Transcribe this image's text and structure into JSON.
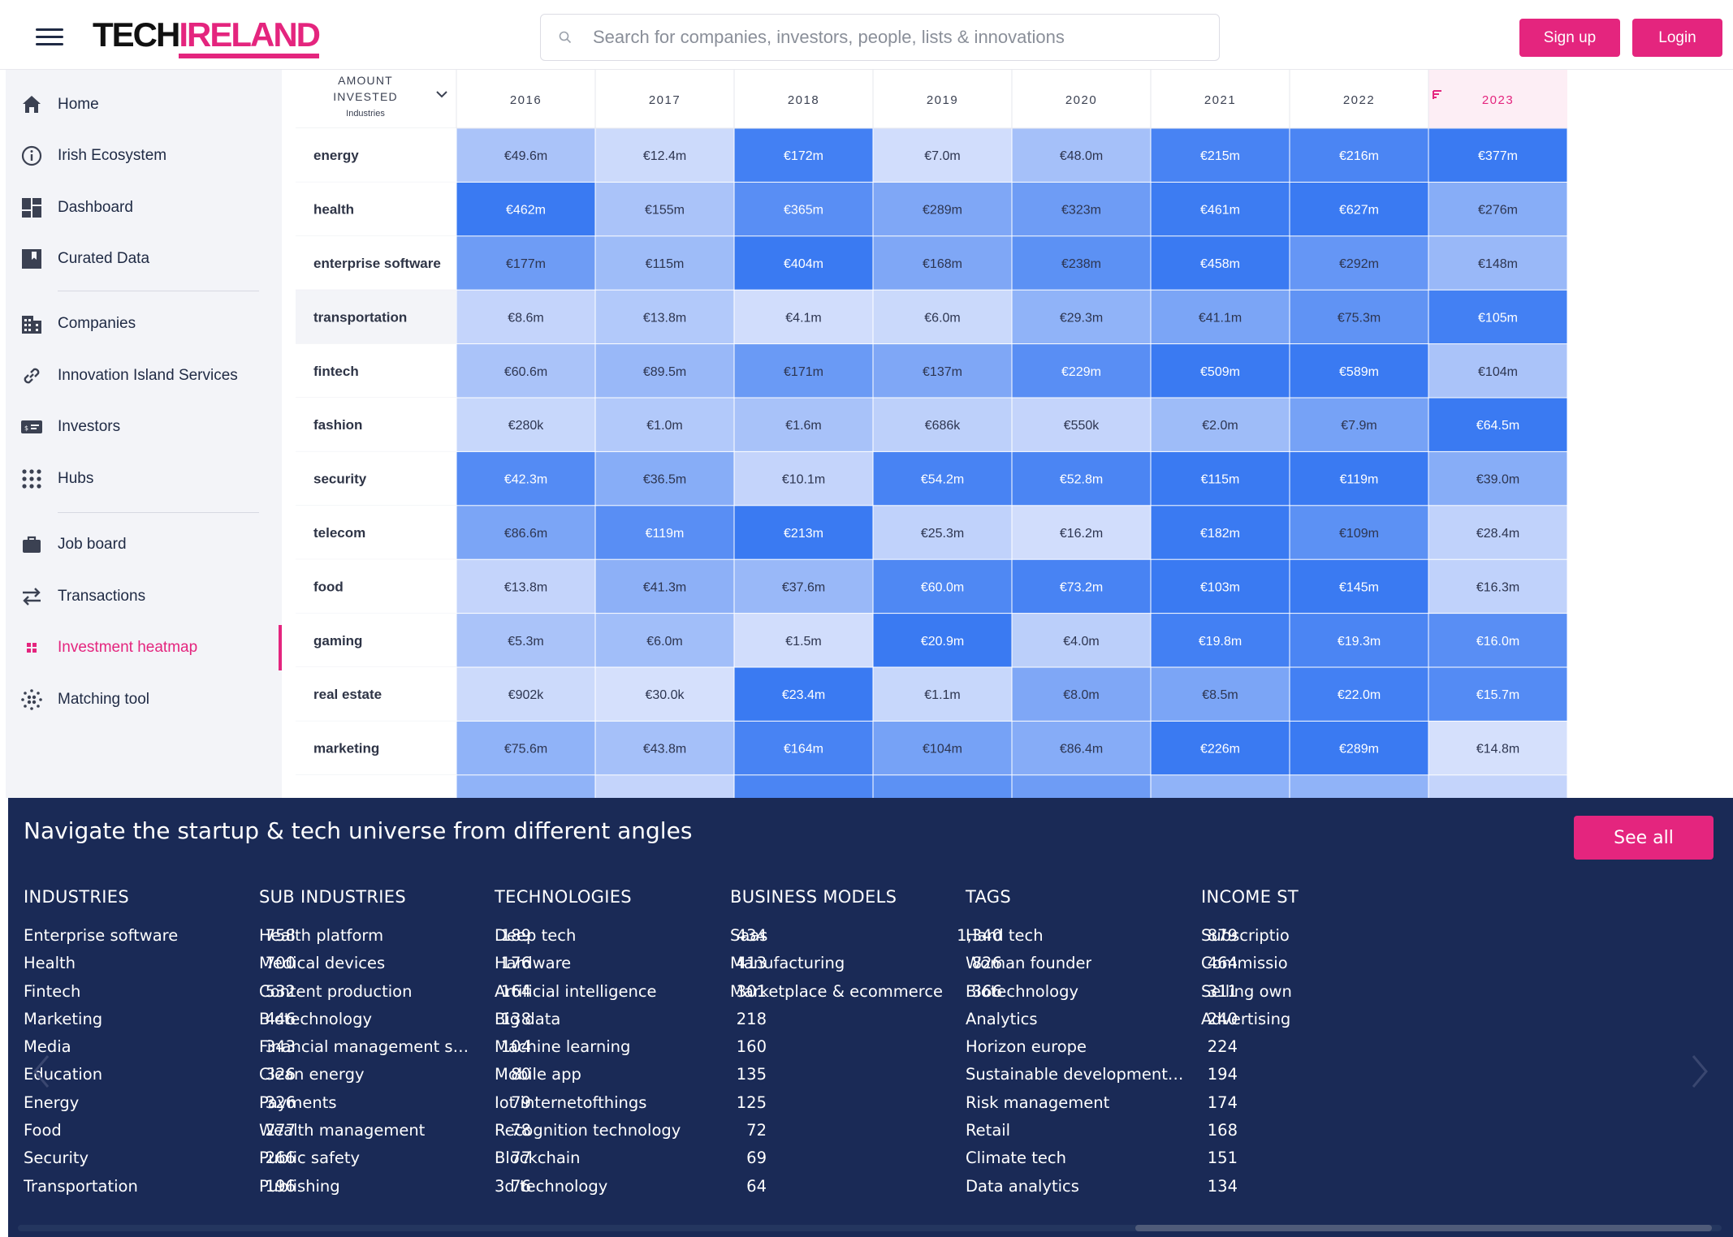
{
  "header": {
    "logo_part1": "TECH",
    "logo_part2": "IRELAND",
    "search_placeholder": "Search for companies, investors, people, lists & innovations",
    "signup_label": "Sign up",
    "login_label": "Login"
  },
  "sidebar": {
    "items": [
      {
        "label": "Home",
        "icon": "home-icon"
      },
      {
        "label": "Irish Ecosystem",
        "icon": "info-icon"
      },
      {
        "label": "Dashboard",
        "icon": "dashboard-icon"
      },
      {
        "label": "Curated Data",
        "icon": "bookmark-icon"
      },
      {
        "label": "Companies",
        "icon": "building-icon"
      },
      {
        "label": "Innovation Island Services",
        "icon": "link-icon"
      },
      {
        "label": "Investors",
        "icon": "money-icon"
      },
      {
        "label": "Hubs",
        "icon": "grid-dots-icon"
      },
      {
        "label": "Job board",
        "icon": "briefcase-icon"
      },
      {
        "label": "Transactions",
        "icon": "swap-icon"
      },
      {
        "label": "Investment heatmap",
        "icon": "heatmap-icon",
        "active": true
      },
      {
        "label": "Matching tool",
        "icon": "matching-icon"
      }
    ],
    "accent_color": "#e4257e"
  },
  "chart_data": {
    "type": "heatmap",
    "title": "",
    "corner_header": [
      "AMOUNT",
      "INVESTED",
      "Industries"
    ],
    "x_label": "",
    "y_label": "",
    "columns": [
      "2016",
      "2017",
      "2018",
      "2019",
      "2020",
      "2021",
      "2022",
      "2023"
    ],
    "sorted_column": "2023",
    "rows": [
      {
        "name": "energy",
        "labels": [
          "€49.6m",
          "€12.4m",
          "€172m",
          "€7.0m",
          "€48.0m",
          "€215m",
          "€216m",
          "€377m"
        ],
        "intensity": [
          0.35,
          0.15,
          0.95,
          0.12,
          0.38,
          0.92,
          0.9,
          1.0
        ]
      },
      {
        "name": "health",
        "labels": [
          "€462m",
          "€155m",
          "€365m",
          "€289m",
          "€323m",
          "€461m",
          "€627m",
          "€276m"
        ],
        "intensity": [
          1.0,
          0.35,
          0.82,
          0.6,
          0.7,
          0.98,
          1.0,
          0.55
        ]
      },
      {
        "name": "enterprise software",
        "labels": [
          "€177m",
          "€115m",
          "€404m",
          "€168m",
          "€238m",
          "€458m",
          "€292m",
          "€148m"
        ],
        "intensity": [
          0.7,
          0.42,
          1.0,
          0.6,
          0.8,
          1.0,
          0.75,
          0.45
        ]
      },
      {
        "name": "transportation",
        "labels": [
          "€8.6m",
          "€13.8m",
          "€4.1m",
          "€6.0m",
          "€29.3m",
          "€41.1m",
          "€75.3m",
          "€105m"
        ],
        "intensity": [
          0.2,
          0.3,
          0.12,
          0.16,
          0.5,
          0.62,
          0.78,
          0.95
        ]
      },
      {
        "name": "fintech",
        "labels": [
          "€60.6m",
          "€89.5m",
          "€171m",
          "€137m",
          "€229m",
          "€509m",
          "€589m",
          "€104m"
        ],
        "intensity": [
          0.35,
          0.45,
          0.72,
          0.6,
          0.82,
          1.0,
          1.0,
          0.35
        ]
      },
      {
        "name": "fashion",
        "labels": [
          "€280k",
          "€1.0m",
          "€1.6m",
          "€686k",
          "€550k",
          "€2.0m",
          "€7.9m",
          "€64.5m"
        ],
        "intensity": [
          0.18,
          0.3,
          0.36,
          0.24,
          0.2,
          0.42,
          0.65,
          1.0
        ]
      },
      {
        "name": "security",
        "labels": [
          "€42.3m",
          "€36.5m",
          "€10.1m",
          "€54.2m",
          "€52.8m",
          "€115m",
          "€119m",
          "€39.0m"
        ],
        "intensity": [
          0.85,
          0.55,
          0.2,
          0.92,
          0.9,
          1.0,
          1.0,
          0.55
        ]
      },
      {
        "name": "telecom",
        "labels": [
          "€86.6m",
          "€119m",
          "€213m",
          "€25.3m",
          "€16.2m",
          "€182m",
          "€109m",
          "€28.4m"
        ],
        "intensity": [
          0.62,
          0.82,
          1.0,
          0.22,
          0.12,
          1.0,
          0.8,
          0.22
        ]
      },
      {
        "name": "food",
        "labels": [
          "€13.8m",
          "€41.3m",
          "€37.6m",
          "€60.0m",
          "€73.2m",
          "€103m",
          "€145m",
          "€16.3m"
        ],
        "intensity": [
          0.2,
          0.52,
          0.45,
          0.88,
          0.92,
          1.0,
          1.0,
          0.22
        ]
      },
      {
        "name": "gaming",
        "labels": [
          "€5.3m",
          "€6.0m",
          "€1.5m",
          "€20.9m",
          "€4.0m",
          "€19.8m",
          "€19.3m",
          "€16.0m"
        ],
        "intensity": [
          0.35,
          0.4,
          0.12,
          1.0,
          0.25,
          0.95,
          0.9,
          0.82
        ]
      },
      {
        "name": "real estate",
        "labels": [
          "€902k",
          "€30.0k",
          "€23.4m",
          "€1.1m",
          "€8.0m",
          "€8.5m",
          "€22.0m",
          "€15.7m"
        ],
        "intensity": [
          0.15,
          0.1,
          1.0,
          0.18,
          0.6,
          0.62,
          0.95,
          0.85
        ]
      },
      {
        "name": "marketing",
        "labels": [
          "€75.6m",
          "€43.8m",
          "€164m",
          "€104m",
          "€86.4m",
          "€226m",
          "€289m",
          "€14.8m"
        ],
        "intensity": [
          0.5,
          0.38,
          0.92,
          0.65,
          0.56,
          1.0,
          1.0,
          0.1
        ]
      }
    ],
    "partial_row_intensity": [
      0.5,
      0.2,
      0.9,
      0.8,
      0.7,
      0.5,
      0.5,
      0.2
    ],
    "color_scale": {
      "low": "#e6ebfd",
      "high": "#3a7af2"
    },
    "highlight_header_color": "#fdeef5",
    "hover_row": "transportation",
    "row_action_icon": "trash-icon"
  },
  "bottom_panel": {
    "title": "Navigate the startup & tech universe from different angles",
    "see_all_label": "See all",
    "columns": [
      {
        "header": "INDUSTRIES",
        "items": [
          {
            "name": "Enterprise software",
            "count": "758"
          },
          {
            "name": "Health",
            "count": "700"
          },
          {
            "name": "Fintech",
            "count": "532"
          },
          {
            "name": "Marketing",
            "count": "446"
          },
          {
            "name": "Media",
            "count": "343"
          },
          {
            "name": "Education",
            "count": "326"
          },
          {
            "name": "Energy",
            "count": "326"
          },
          {
            "name": "Food",
            "count": "277"
          },
          {
            "name": "Security",
            "count": "266"
          },
          {
            "name": "Transportation",
            "count": "196"
          }
        ]
      },
      {
        "header": "SUB INDUSTRIES",
        "items": [
          {
            "name": "Health platform",
            "count": "189"
          },
          {
            "name": "Medical devices",
            "count": "176"
          },
          {
            "name": "Content production",
            "count": "164"
          },
          {
            "name": "Biotechnology",
            "count": "138"
          },
          {
            "name": "Financial management solu…",
            "count": "104"
          },
          {
            "name": "Clean energy",
            "count": "80"
          },
          {
            "name": "Payments",
            "count": "79"
          },
          {
            "name": "Wealth management",
            "count": "78"
          },
          {
            "name": "Public safety",
            "count": "77"
          },
          {
            "name": "Publishing",
            "count": "76"
          }
        ]
      },
      {
        "header": "TECHNOLOGIES",
        "items": [
          {
            "name": "Deep tech",
            "count": "434"
          },
          {
            "name": "Hardware",
            "count": "413"
          },
          {
            "name": "Artificial intelligence",
            "count": "301"
          },
          {
            "name": "Big data",
            "count": "218"
          },
          {
            "name": "Machine learning",
            "count": "160"
          },
          {
            "name": "Mobile app",
            "count": "135"
          },
          {
            "name": "Iot internetofthings",
            "count": "125"
          },
          {
            "name": "Recognition technology",
            "count": "72"
          },
          {
            "name": "Blockchain",
            "count": "69"
          },
          {
            "name": "3d technology",
            "count": "64"
          }
        ]
      },
      {
        "header": "BUSINESS MODELS",
        "items": [
          {
            "name": "Saas",
            "count": "1,340"
          },
          {
            "name": "Manufacturing",
            "count": "826"
          },
          {
            "name": "Marketplace & ecommerce",
            "count": "366"
          }
        ]
      },
      {
        "header": "TAGS",
        "items": [
          {
            "name": "Hard tech",
            "count": "879"
          },
          {
            "name": "Woman founder",
            "count": "464"
          },
          {
            "name": "Biotechnology",
            "count": "311"
          },
          {
            "name": "Analytics",
            "count": "240"
          },
          {
            "name": "Horizon europe",
            "count": "224"
          },
          {
            "name": "Sustainable development g…",
            "count": "194"
          },
          {
            "name": "Risk management",
            "count": "174"
          },
          {
            "name": "Retail",
            "count": "168"
          },
          {
            "name": "Climate tech",
            "count": "151"
          },
          {
            "name": "Data analytics",
            "count": "134"
          }
        ]
      },
      {
        "header": "INCOME ST",
        "items": [
          {
            "name": "Subscriptio",
            "count": ""
          },
          {
            "name": "Commissio",
            "count": ""
          },
          {
            "name": "Selling own",
            "count": ""
          },
          {
            "name": "Advertising",
            "count": ""
          }
        ]
      }
    ]
  }
}
